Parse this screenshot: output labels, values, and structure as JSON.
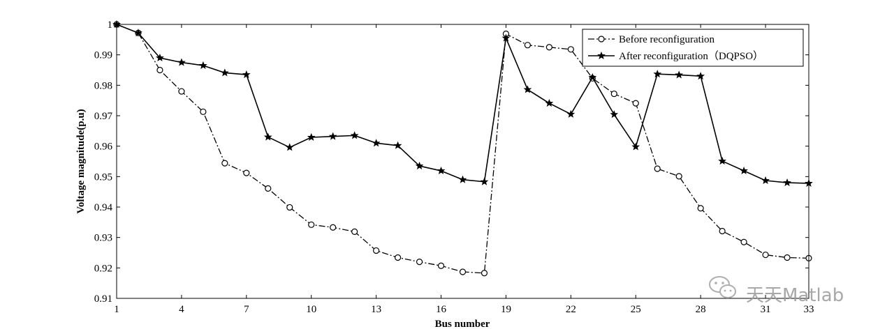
{
  "chart_data": {
    "type": "line",
    "xlabel": "Bus number",
    "ylabel": "Voltage magnitude(p.u)",
    "xlim": [
      1,
      33
    ],
    "ylim": [
      0.91,
      1.0
    ],
    "xticks": [
      1,
      4,
      7,
      10,
      13,
      16,
      19,
      22,
      25,
      28,
      31,
      33
    ],
    "yticks": [
      0.91,
      0.92,
      0.93,
      0.94,
      0.95,
      0.96,
      0.97,
      0.98,
      0.99,
      1.0
    ],
    "ytick_labels": [
      "0.91",
      "0.92",
      "0.93",
      "0.94",
      "0.95",
      "0.96",
      "0.97",
      "0.98",
      "0.99",
      "1"
    ],
    "grid": false,
    "legend_position": "top-right",
    "x": [
      1,
      2,
      3,
      4,
      5,
      6,
      7,
      8,
      9,
      10,
      11,
      12,
      13,
      14,
      15,
      16,
      17,
      18,
      19,
      20,
      21,
      22,
      23,
      24,
      25,
      26,
      27,
      28,
      29,
      30,
      31,
      32,
      33
    ],
    "series": [
      {
        "name": "Before reconfiguration",
        "line_style": "dash-dot",
        "marker": "circle",
        "color": "#000000",
        "values": [
          1.0,
          0.9972,
          0.985,
          0.978,
          0.9713,
          0.9544,
          0.9512,
          0.9461,
          0.9399,
          0.9342,
          0.9333,
          0.9319,
          0.9257,
          0.9234,
          0.922,
          0.9207,
          0.9187,
          0.9183,
          0.9969,
          0.9932,
          0.9925,
          0.9918,
          0.9823,
          0.9772,
          0.9741,
          0.9526,
          0.9501,
          0.9396,
          0.9321,
          0.9285,
          0.9243,
          0.9234,
          0.9232
        ]
      },
      {
        "name": "After reconfiguration（DQPSO）",
        "line_style": "solid",
        "marker": "star",
        "color": "#000000",
        "values": [
          1.0,
          0.9972,
          0.989,
          0.9875,
          0.9865,
          0.9841,
          0.9835,
          0.963,
          0.9596,
          0.9629,
          0.9632,
          0.9635,
          0.961,
          0.9602,
          0.9535,
          0.9519,
          0.949,
          0.9483,
          0.9955,
          0.9786,
          0.9741,
          0.9705,
          0.9826,
          0.9704,
          0.9598,
          0.9837,
          0.9834,
          0.983,
          0.9551,
          0.9519,
          0.9487,
          0.948,
          0.9478
        ]
      }
    ]
  },
  "watermark": {
    "text": "天天Matlab",
    "icon": "wechat-icon"
  }
}
